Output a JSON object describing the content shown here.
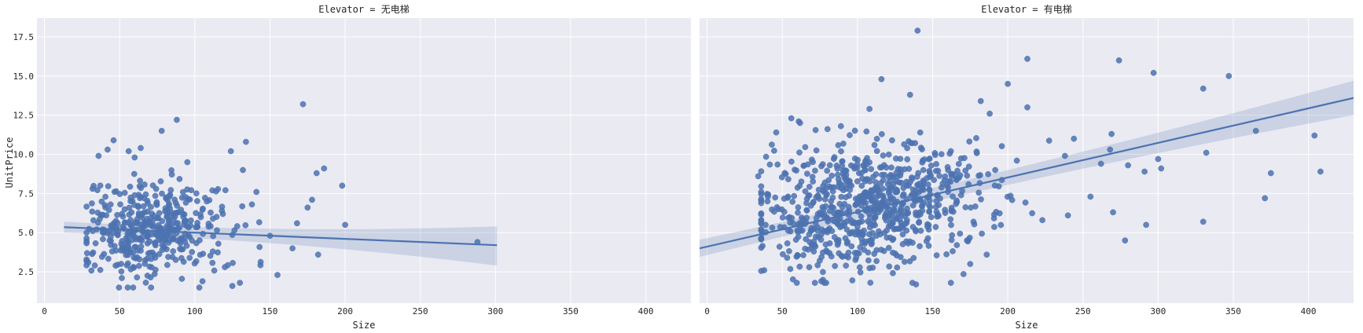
{
  "chart_data": {
    "type": "scatter",
    "style": {
      "background": "#eaeaf2",
      "grid_color": "#ffffff",
      "point_color": "#4c72b0",
      "line_color": "#4c72b0",
      "band_color": "#4c72b0",
      "grid": true
    },
    "xlabel": "Size",
    "ylabel": "UnitPrice",
    "xlim": [
      -5,
      430
    ],
    "ylim": [
      0.5,
      18.7
    ],
    "x_ticks": [
      0,
      50,
      100,
      150,
      200,
      250,
      300,
      350,
      400
    ],
    "y_ticks": [
      2.5,
      5.0,
      7.5,
      10.0,
      12.5,
      15.0,
      17.5
    ],
    "x_tick_labels": [
      "0",
      "50",
      "100",
      "150",
      "200",
      "250",
      "300",
      "350",
      "400"
    ],
    "y_tick_labels": [
      "2.5",
      "5.0",
      "7.5",
      "10.0",
      "12.5",
      "15.0",
      "17.5"
    ],
    "panels": [
      {
        "title": "Elevator = 无电梯",
        "regression": {
          "x": [
            13,
            301
          ],
          "y": [
            5.35,
            4.2
          ],
          "ci_upper": [
            5.7,
            5.4
          ],
          "ci_lower": [
            5.0,
            2.9
          ]
        },
        "outliers": [
          [
            88,
            12.2
          ],
          [
            78,
            11.5
          ],
          [
            46,
            10.9
          ],
          [
            172,
            13.2
          ],
          [
            134,
            10.8
          ],
          [
            124,
            10.2
          ],
          [
            186,
            9.1
          ],
          [
            181,
            8.8
          ],
          [
            198,
            8.0
          ],
          [
            200,
            5.5
          ],
          [
            288,
            4.4
          ],
          [
            155,
            2.3
          ],
          [
            165,
            4.0
          ],
          [
            168,
            5.6
          ],
          [
            175,
            6.6
          ],
          [
            182,
            3.6
          ],
          [
            178,
            7.1
          ],
          [
            141,
            7.6
          ],
          [
            150,
            4.8
          ],
          [
            132,
            9.0
          ],
          [
            130,
            1.8
          ],
          [
            125,
            1.6
          ],
          [
            103,
            1.5
          ],
          [
            120,
            2.8
          ],
          [
            112,
            3.8
          ],
          [
            28,
            5.0
          ],
          [
            32,
            7.8
          ],
          [
            36,
            9.9
          ],
          [
            42,
            10.3
          ],
          [
            56,
            10.2
          ],
          [
            95,
            9.5
          ],
          [
            64,
            10.4
          ],
          [
            60,
            9.8
          ],
          [
            108,
            7.0
          ],
          [
            118,
            6.4
          ],
          [
            138,
            6.8
          ]
        ],
        "cloud": {
          "n": 420,
          "x_mean": 72,
          "x_sd": 23,
          "y_mean": 5.2,
          "y_sd": 1.5,
          "x_min": 28,
          "x_max": 150,
          "y_min": 1.5,
          "y_max": 10.5,
          "seed": 7
        }
      },
      {
        "title": "Elevator = 有电梯",
        "regression": {
          "x": [
            -5,
            430
          ],
          "y": [
            4.0,
            13.6
          ],
          "ci_upper": [
            4.55,
            14.7
          ],
          "ci_lower": [
            3.45,
            12.5
          ]
        },
        "outliers": [
          [
            140,
            17.9
          ],
          [
            213,
            16.1
          ],
          [
            274,
            16.0
          ],
          [
            297,
            15.2
          ],
          [
            347,
            15.0
          ],
          [
            116,
            14.8
          ],
          [
            200,
            14.5
          ],
          [
            330,
            14.2
          ],
          [
            135,
            13.8
          ],
          [
            213,
            13.0
          ],
          [
            182,
            13.4
          ],
          [
            188,
            12.6
          ],
          [
            365,
            11.5
          ],
          [
            404,
            11.2
          ],
          [
            332,
            10.1
          ],
          [
            375,
            8.8
          ],
          [
            408,
            8.9
          ],
          [
            371,
            7.2
          ],
          [
            330,
            5.7
          ],
          [
            292,
            5.5
          ],
          [
            278,
            4.5
          ],
          [
            270,
            6.3
          ],
          [
            268,
            10.3
          ],
          [
            269,
            11.3
          ],
          [
            300,
            9.7
          ],
          [
            302,
            9.1
          ],
          [
            291,
            8.9
          ],
          [
            280,
            9.3
          ],
          [
            262,
            9.4
          ],
          [
            255,
            7.3
          ],
          [
            240,
            6.1
          ],
          [
            238,
            9.9
          ],
          [
            244,
            11.0
          ],
          [
            206,
            9.6
          ],
          [
            223,
            5.8
          ],
          [
            186,
            3.6
          ],
          [
            175,
            3.0
          ],
          [
            139,
            1.7
          ],
          [
            76,
            1.9
          ],
          [
            38,
            2.6
          ],
          [
            34,
            8.6
          ],
          [
            46,
            11.4
          ],
          [
            56,
            12.3
          ],
          [
            61,
            12.1
          ],
          [
            89,
            11.8
          ],
          [
            108,
            12.9
          ]
        ],
        "cloud": {
          "n": 780,
          "x_mean": 108,
          "x_sd": 38,
          "y_mean": 6.7,
          "y_sd": 2.0,
          "x_min": 36,
          "x_max": 245,
          "y_min": 1.8,
          "y_max": 12.0,
          "seed": 19
        }
      }
    ]
  }
}
